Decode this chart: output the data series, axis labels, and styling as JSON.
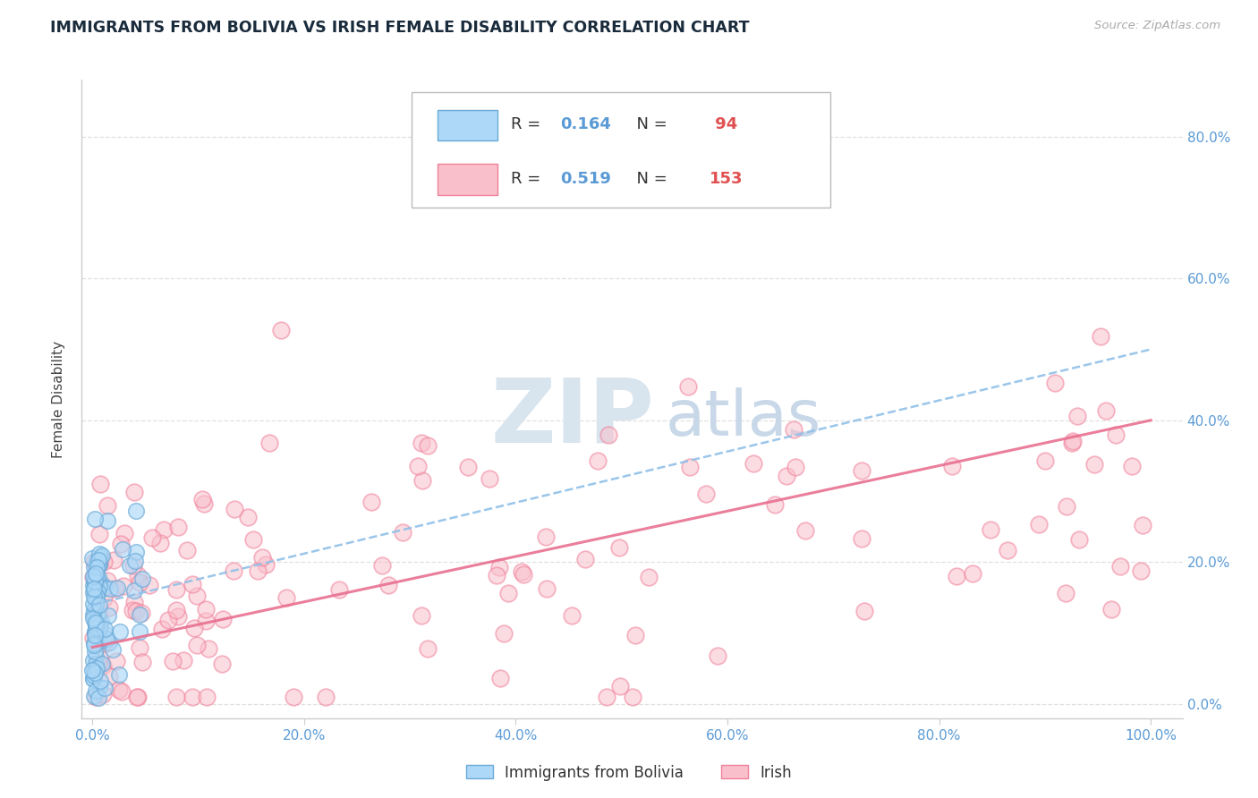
{
  "title": "IMMIGRANTS FROM BOLIVIA VS IRISH FEMALE DISABILITY CORRELATION CHART",
  "source": "Source: ZipAtlas.com",
  "ylabel": "Female Disability",
  "blue_R": 0.164,
  "blue_N": 94,
  "pink_R": 0.519,
  "pink_N": 153,
  "blue_color": "#ADD8F7",
  "pink_color": "#F9C0CB",
  "blue_edge": "#6AAAD8",
  "pink_edge": "#F0809A",
  "trend_blue_color": "#90C0E8",
  "trend_pink_color": "#E87090",
  "legend_label_blue": "Immigrants from Bolivia",
  "legend_label_pink": "Irish",
  "title_color": "#1A2B3C",
  "axis_tick_color": "#5B9BD5",
  "legend_text_color": "#333333",
  "legend_value_color": "#5B9BD5",
  "legend_N_color": "#E05050",
  "background_color": "#FFFFFF",
  "grid_color": "#DDDDDD",
  "ylabel_color": "#444444",
  "spine_color": "#CCCCCC",
  "watermark_zip_color": "#D8E4EE",
  "watermark_atlas_color": "#C8D8E8"
}
